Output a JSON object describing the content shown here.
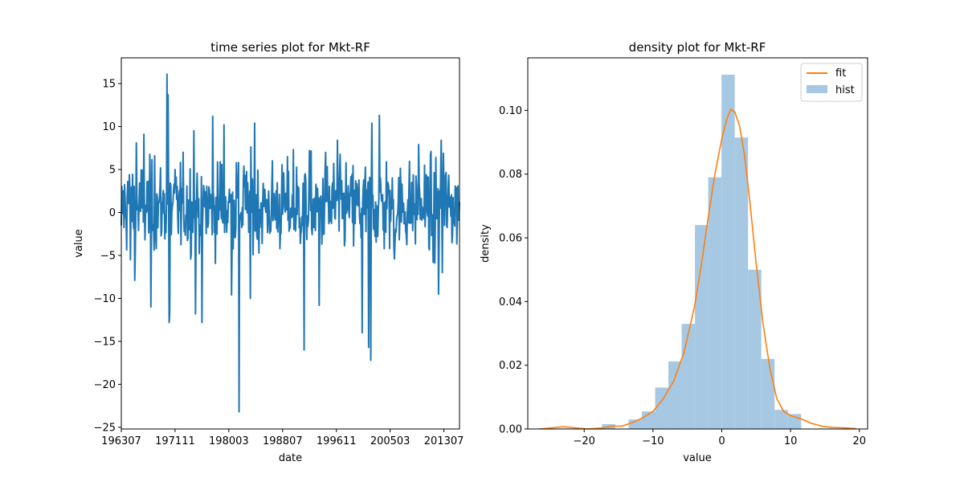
{
  "chart_data": [
    {
      "type": "line",
      "title": "time series plot for Mkt-RF",
      "xlabel": "date",
      "ylabel": "value",
      "x_tick_labels": [
        "196307",
        "197111",
        "198003",
        "198807",
        "199611",
        "200503",
        "201307"
      ],
      "x_tick_index": [
        0,
        100,
        200,
        300,
        400,
        500,
        600
      ],
      "n_points": 630,
      "ylim": [
        -25.2,
        18.0
      ],
      "y_ticks": [
        -25,
        -20,
        -15,
        -10,
        -5,
        0,
        5,
        10,
        15
      ],
      "color": "#1f77b4",
      "notable_points": [
        {
          "x": 0,
          "y": -1.5
        },
        {
          "x": 4,
          "y": 2.5
        },
        {
          "x": 12,
          "y": 3.6
        },
        {
          "x": 17,
          "y": -5.5
        },
        {
          "x": 25,
          "y": -7.9
        },
        {
          "x": 28,
          "y": 8.1
        },
        {
          "x": 42,
          "y": 9.1
        },
        {
          "x": 55,
          "y": -11.0
        },
        {
          "x": 62,
          "y": 6.6
        },
        {
          "x": 85,
          "y": 16.1
        },
        {
          "x": 87,
          "y": 13.7
        },
        {
          "x": 89,
          "y": -12.8
        },
        {
          "x": 90,
          "y": -11.7
        },
        {
          "x": 100,
          "y": 5.0
        },
        {
          "x": 135,
          "y": 9.5
        },
        {
          "x": 138,
          "y": -11.8
        },
        {
          "x": 150,
          "y": -12.8
        },
        {
          "x": 170,
          "y": 11.2
        },
        {
          "x": 184,
          "y": 5.9
        },
        {
          "x": 191,
          "y": 10.2
        },
        {
          "x": 205,
          "y": -9.6
        },
        {
          "x": 214,
          "y": 5.8
        },
        {
          "x": 219,
          "y": -23.2
        },
        {
          "x": 228,
          "y": 5.4
        },
        {
          "x": 240,
          "y": -10.0
        },
        {
          "x": 248,
          "y": 10.4
        },
        {
          "x": 320,
          "y": 7.3
        },
        {
          "x": 340,
          "y": -16.0
        },
        {
          "x": 350,
          "y": 7.2
        },
        {
          "x": 368,
          "y": -10.8
        },
        {
          "x": 380,
          "y": 7.0
        },
        {
          "x": 395,
          "y": 5.7
        },
        {
          "x": 402,
          "y": 8.4
        },
        {
          "x": 448,
          "y": -14.0
        },
        {
          "x": 460,
          "y": -15.7
        },
        {
          "x": 464,
          "y": -17.2
        },
        {
          "x": 466,
          "y": 10.4
        },
        {
          "x": 480,
          "y": 11.3
        },
        {
          "x": 493,
          "y": 5.9
        },
        {
          "x": 508,
          "y": -5.4
        },
        {
          "x": 553,
          "y": 7.9
        },
        {
          "x": 567,
          "y": 4.4
        },
        {
          "x": 580,
          "y": -5.8
        },
        {
          "x": 590,
          "y": -9.5
        },
        {
          "x": 595,
          "y": 8.4
        },
        {
          "x": 597,
          "y": -7.0
        },
        {
          "x": 599,
          "y": 6.9
        },
        {
          "x": 603,
          "y": 4.3
        },
        {
          "x": 629,
          "y": 1.2
        }
      ]
    },
    {
      "type": "bar",
      "title": "density plot for Mkt-RF",
      "xlabel": "value",
      "ylabel": "density",
      "xlim": [
        -28.2,
        21.2
      ],
      "ylim": [
        0,
        0.1165
      ],
      "x_ticks": [
        -20,
        -10,
        0,
        10,
        20
      ],
      "y_ticks": [
        "0.00",
        "0.02",
        "0.04",
        "0.06",
        "0.08",
        "0.10"
      ],
      "y_tick_values": [
        0.0,
        0.02,
        0.04,
        0.06,
        0.08,
        0.1
      ],
      "legend": [
        "fit",
        "hist"
      ],
      "legend_position": "top-right",
      "hist_color": "#a6c8e3",
      "fit_color": "#ff7f0e",
      "bins": [
        {
          "x0": -23.2,
          "x1": -21.27,
          "density": 0.0
        },
        {
          "x0": -21.27,
          "x1": -19.34,
          "density": 0.0
        },
        {
          "x0": -19.34,
          "x1": -17.41,
          "density": 0.0
        },
        {
          "x0": -17.41,
          "x1": -15.48,
          "density": 0.0015
        },
        {
          "x0": -15.48,
          "x1": -13.55,
          "density": 0.0
        },
        {
          "x0": -13.55,
          "x1": -11.62,
          "density": 0.003
        },
        {
          "x0": -11.62,
          "x1": -9.69,
          "density": 0.0055
        },
        {
          "x0": -9.69,
          "x1": -7.76,
          "density": 0.013
        },
        {
          "x0": -7.76,
          "x1": -5.83,
          "density": 0.0212
        },
        {
          "x0": -5.83,
          "x1": -3.9,
          "density": 0.033
        },
        {
          "x0": -3.9,
          "x1": -1.97,
          "density": 0.064
        },
        {
          "x0": -1.97,
          "x1": -0.04,
          "density": 0.079
        },
        {
          "x0": -0.04,
          "x1": 1.89,
          "density": 0.1112
        },
        {
          "x0": 1.89,
          "x1": 3.82,
          "density": 0.0915
        },
        {
          "x0": 3.82,
          "x1": 5.75,
          "density": 0.05
        },
        {
          "x0": 5.75,
          "x1": 7.68,
          "density": 0.022
        },
        {
          "x0": 7.68,
          "x1": 9.61,
          "density": 0.006
        },
        {
          "x0": 9.61,
          "x1": 11.54,
          "density": 0.0047
        },
        {
          "x0": 11.54,
          "x1": 13.47,
          "density": 0.0
        },
        {
          "x0": 13.47,
          "x1": 15.4,
          "density": 0.0
        }
      ],
      "fit_curve": [
        {
          "x": -26.5,
          "y": 0.0
        },
        {
          "x": -24.5,
          "y": 0.0004
        },
        {
          "x": -23.0,
          "y": 0.0007
        },
        {
          "x": -21.5,
          "y": 0.0004
        },
        {
          "x": -19.5,
          "y": 0.0
        },
        {
          "x": -17.5,
          "y": 0.0003
        },
        {
          "x": -16.0,
          "y": 0.0009
        },
        {
          "x": -14.5,
          "y": 0.0009
        },
        {
          "x": -13.0,
          "y": 0.002
        },
        {
          "x": -11.5,
          "y": 0.0035
        },
        {
          "x": -10.0,
          "y": 0.0055
        },
        {
          "x": -8.5,
          "y": 0.0095
        },
        {
          "x": -7.0,
          "y": 0.015
        },
        {
          "x": -5.5,
          "y": 0.024
        },
        {
          "x": -4.0,
          "y": 0.038
        },
        {
          "x": -3.0,
          "y": 0.051
        },
        {
          "x": -2.0,
          "y": 0.066
        },
        {
          "x": -1.0,
          "y": 0.08
        },
        {
          "x": 0.0,
          "y": 0.091
        },
        {
          "x": 0.7,
          "y": 0.097
        },
        {
          "x": 1.3,
          "y": 0.1003
        },
        {
          "x": 1.9,
          "y": 0.0995
        },
        {
          "x": 2.6,
          "y": 0.095
        },
        {
          "x": 3.3,
          "y": 0.086
        },
        {
          "x": 4.0,
          "y": 0.073
        },
        {
          "x": 5.0,
          "y": 0.052
        },
        {
          "x": 6.0,
          "y": 0.033
        },
        {
          "x": 7.0,
          "y": 0.019
        },
        {
          "x": 8.0,
          "y": 0.0095
        },
        {
          "x": 9.0,
          "y": 0.0055
        },
        {
          "x": 10.0,
          "y": 0.0042
        },
        {
          "x": 11.5,
          "y": 0.0032
        },
        {
          "x": 13.0,
          "y": 0.0018
        },
        {
          "x": 14.5,
          "y": 0.0009
        },
        {
          "x": 16.0,
          "y": 0.0005
        },
        {
          "x": 17.5,
          "y": 0.0004
        },
        {
          "x": 19.5,
          "y": 0.0001
        }
      ]
    }
  ]
}
